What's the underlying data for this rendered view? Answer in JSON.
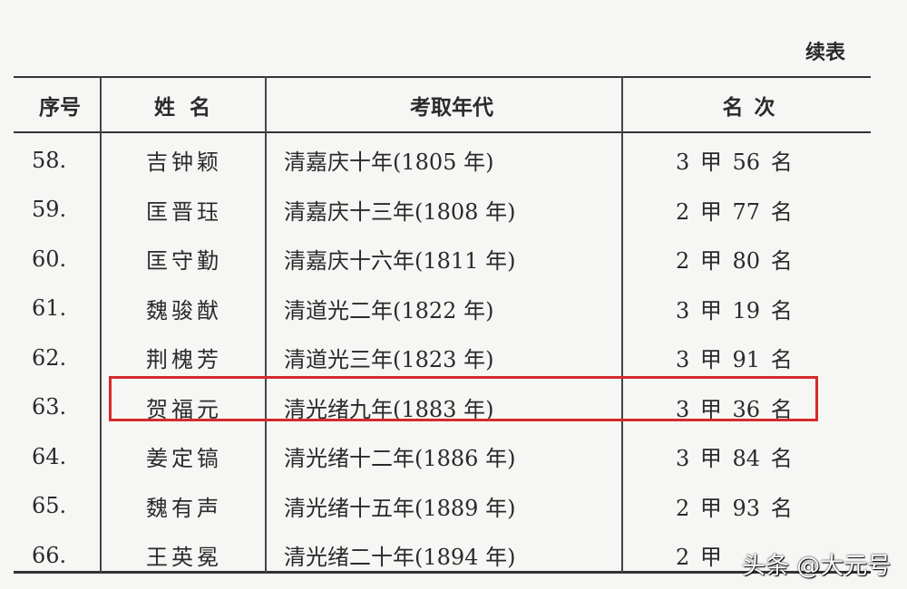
{
  "caption": "续表",
  "headers": [
    "序号",
    "姓 名",
    "考取年代",
    "名 次"
  ],
  "rows": [
    [
      "58.",
      "吉钟颖",
      "清嘉庆十年(1805 年)",
      "3 甲 56 名"
    ],
    [
      "59.",
      "匡晋珏",
      "清嘉庆十三年(1808 年)",
      "2 甲 77 名"
    ],
    [
      "60.",
      "匡守勤",
      "清嘉庆十六年(1811 年)",
      "2 甲 80 名"
    ],
    [
      "61.",
      "魏骏猷",
      "清道光二年(1822 年)",
      "3 甲 19 名"
    ],
    [
      "62.",
      "荆槐芳",
      "清道光三年(1823 年)",
      "3 甲 91 名"
    ],
    [
      "63.",
      "贺福元",
      "清光绪九年(1883 年)",
      "3 甲 36 名"
    ],
    [
      "64.",
      "姜定镐",
      "清光绪十二年(1886 年)",
      "3 甲 84 名"
    ],
    [
      "65.",
      "魏有声",
      "清光绪十五年(1889 年)",
      "2 甲 93 名"
    ],
    [
      "66.",
      "王英冕",
      "清光绪二十年(1894 年)",
      "2 甲"
    ]
  ],
  "highlighted_row": "63.",
  "highlight_color": "#d42b2b",
  "watermark": "头条 @大元号"
}
